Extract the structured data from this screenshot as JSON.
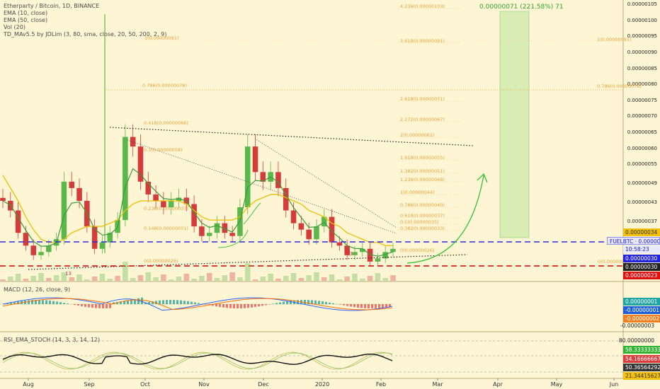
{
  "main_legend": {
    "symbol": "Etherparty / Bitcoin, 1D, BINANCE",
    "ema10": "EMA (10, close)",
    "ema50": "EMA (50, close)",
    "vol": "Vol (20)",
    "td": "TD_MAv5.5 by JDLim (3, 80, sma, close, 20, 50, 200, 2, 9)"
  },
  "macd_legend": "MACD (12, 26, close, 9)",
  "rsi_legend": "RSI_EMA_STOCH (14, 3, 3, 14, 12)",
  "projection_text": "0.00000071 (221.58%) 71",
  "count_labels": [
    "13",
    "13"
  ],
  "colors": {
    "background": "#fdf5d4",
    "up_candle": "#5ab84a",
    "down_candle": "#d43c3c",
    "ema10": "#3a9a3a",
    "ema50": "#e8c000",
    "fib": "#e69a28",
    "blue_line": "#2b2be0",
    "red_line": "#d60000",
    "projection": "#33c033"
  },
  "fib_labels": [
    "4.236(0.00000103)",
    "3.618(0.00000091)",
    "2.618(0.00000071)",
    "2.272(0.00000067)",
    "2(0.00000062)",
    "1.618(0.00000055)",
    "1.382(0.00000051)",
    "1.236(0.00000048)",
    "1(0.00000044)",
    "0.786(0.00000040)",
    "0.618(0.00000037)",
    "0.5(0.00000035)",
    "0.382(0.00000033)",
    "0(0.00000026)"
  ],
  "left_fib_labels": [
    "1(0.00000091)",
    "0.786(0.00000078)",
    "0.418(0.00000066)",
    "0.3(0.00000058)",
    "0.236(0.00000037)",
    "0.148(0.00000031)",
    "0(0.00000026)"
  ],
  "right_fib_labels": [
    "1(0.00000091)",
    "0.786(0.00000078)",
    "0(0.00000023)"
  ],
  "price_axis": [
    "0.00000105",
    "0.00000100",
    "0.00000095",
    "0.00000090",
    "0.00000085",
    "0.00000080",
    "0.00000075",
    "0.00000070",
    "0.00000065",
    "0.00000060",
    "0.00000055",
    "0.00000049",
    "0.00000043",
    "0.00000037"
  ],
  "price_tags": {
    "high": "0.00000034",
    "pair": "FUELBTC · 0.00000031",
    "countdown": "10:58:23",
    "blue_level": "0.00000030",
    "dark_level": "0.00000030",
    "red_level": "0.00000023"
  },
  "macd_tags": [
    "0.00000001",
    "-0.00000001",
    "-0.00000002",
    "-0.00000003"
  ],
  "rsi_axis": [
    "80.00000000"
  ],
  "rsi_tags": [
    "58.33333333",
    "54.16666667",
    "50.36564292",
    "21.34415627"
  ],
  "x_axis": [
    "Aug",
    "Sep",
    "Oct",
    "Nov",
    "Dec",
    "2020",
    "Feb",
    "Mar",
    "Apr",
    "May",
    "Jun"
  ],
  "chart_data": {
    "type": "candlestick",
    "title": "Etherparty / Bitcoin, 1D, BINANCE",
    "x_range": [
      "2019-07-18",
      "2020-06-06"
    ],
    "ylim": [
      2e-07,
      1.06e-06
    ],
    "closes": [
      4.6e-07,
      4.3e-07,
      3.6e-07,
      3.2e-07,
      2.9e-07,
      3e-07,
      3.2e-07,
      3.4e-07,
      5.2e-07,
      5e-07,
      4.6e-07,
      3.8e-07,
      3.1e-07,
      3.3e-07,
      3.6e-07,
      4e-07,
      6.6e-07,
      6.3e-07,
      5.2e-07,
      4.8e-07,
      4.6e-07,
      4.4e-07,
      4.6e-07,
      4.7e-07,
      4.5e-07,
      3.8e-07,
      3.5e-07,
      3.6e-07,
      3.9e-07,
      3.6e-07,
      3.5e-07,
      4.4e-07,
      6.3e-07,
      5.5e-07,
      5.2e-07,
      5.5e-07,
      5e-07,
      4.3e-07,
      3.9e-07,
      3.7e-07,
      3.4e-07,
      3.8e-07,
      4.1e-07,
      3.3e-07,
      3.2e-07,
      2.9e-07,
      3e-07,
      3.1e-07,
      2.7e-07,
      2.8e-07,
      3e-07,
      3.1e-07
    ],
    "ema50": [
      5.4e-07,
      5e-07,
      4.6e-07,
      4.1e-07,
      3.7e-07,
      3.4e-07,
      3.3e-07,
      3.3e-07,
      3.4e-07,
      3.6e-07,
      3.7e-07,
      3.8e-07,
      3.8e-07,
      3.8e-07,
      3.9e-07,
      4e-07,
      4.3e-07,
      4.5e-07,
      4.6e-07,
      4.6e-07,
      4.6e-07,
      4.6e-07,
      4.6e-07,
      4.6e-07,
      4.5e-07,
      4.3e-07,
      4.1e-07,
      4e-07,
      4e-07,
      4e-07,
      4e-07,
      4.1e-07,
      4.4e-07,
      4.6e-07,
      4.7e-07,
      4.8e-07,
      4.8e-07,
      4.7e-07,
      4.6e-07,
      4.5e-07,
      4.3e-07,
      4.2e-07,
      4.1e-07,
      3.9e-07,
      3.8e-07,
      3.6e-07,
      3.5e-07,
      3.4e-07,
      3.3e-07,
      3.3e-07,
      3.2e-07,
      3.2e-07
    ],
    "fib_levels": [
      1.03e-06,
      9.1e-07,
      7.1e-07,
      6.7e-07,
      6.2e-07,
      5.5e-07,
      5.1e-07,
      4.8e-07,
      4.4e-07,
      4e-07,
      3.7e-07,
      3.5e-07,
      3.3e-07,
      2.6e-07
    ],
    "horizontal_levels": {
      "blue_dashed": 3e-07,
      "red_dashed": 2.3e-07
    },
    "projection_target": 7.1e-07
  }
}
